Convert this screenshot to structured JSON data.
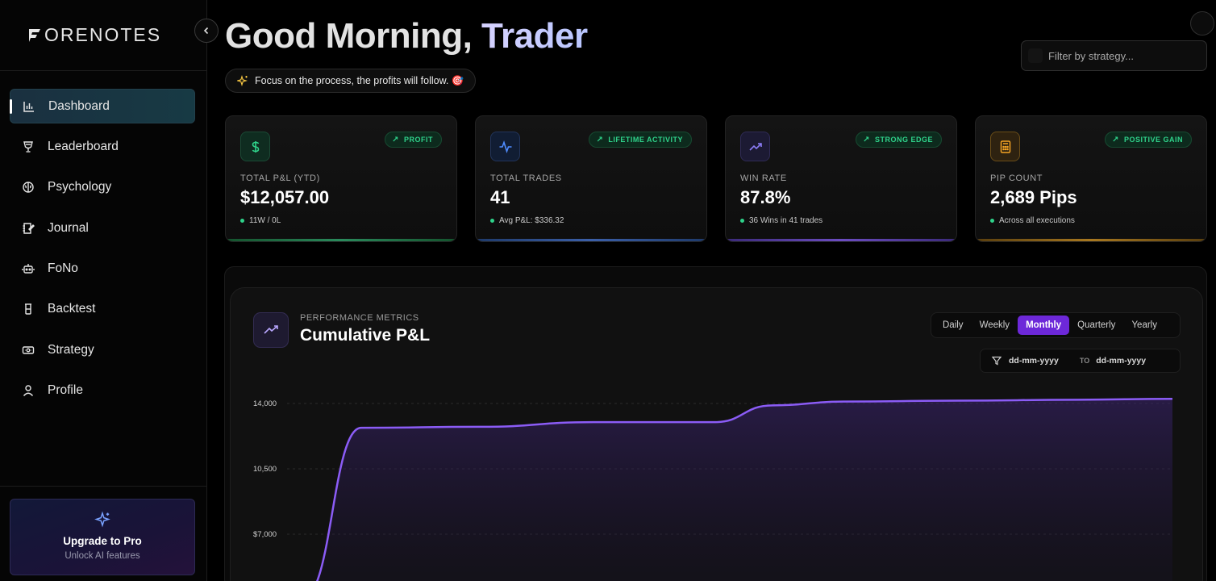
{
  "app": {
    "logo_text": "ORENOTES"
  },
  "sidebar": {
    "items": [
      {
        "label": "Dashboard",
        "icon": "bar-chart-icon",
        "active": true
      },
      {
        "label": "Leaderboard",
        "icon": "trophy-icon",
        "active": false
      },
      {
        "label": "Psychology",
        "icon": "brain-icon",
        "active": false
      },
      {
        "label": "Journal",
        "icon": "journal-icon",
        "active": false
      },
      {
        "label": "FoNo",
        "icon": "bot-icon",
        "active": false
      },
      {
        "label": "Backtest",
        "icon": "flask-icon",
        "active": false
      },
      {
        "label": "Strategy",
        "icon": "banknote-icon",
        "active": false
      },
      {
        "label": "Profile",
        "icon": "user-icon",
        "active": false
      }
    ],
    "upgrade": {
      "title": "Upgrade to Pro",
      "subtitle": "Unlock AI features"
    }
  },
  "header": {
    "greeting_prefix": "Good Morning,",
    "greeting_name": "Trader",
    "quote": "Focus on the process, the profits will follow. 🎯",
    "filter_placeholder": "Filter by strategy..."
  },
  "cards": [
    {
      "badge": "PROFIT",
      "label": "TOTAL P&L (YTD)",
      "value": "$12,057.00",
      "sub": "11W / 0L",
      "icon": "dollar-icon",
      "accent": "#2fd28a",
      "bar": "#1f7a52"
    },
    {
      "badge": "LIFETIME ACTIVITY",
      "label": "TOTAL TRADES",
      "value": "41",
      "sub": "Avg P&L: $336.32",
      "icon": "activity-icon",
      "accent": "#4f8cff",
      "bar": "#2d4f8f"
    },
    {
      "badge": "STRONG EDGE",
      "label": "WIN RATE",
      "value": "87.8%",
      "sub": "36 Wins in 41 trades",
      "icon": "trending-up-icon",
      "accent": "#8b7cf6",
      "bar": "#5a3fa0"
    },
    {
      "badge": "POSITIVE GAIN",
      "label": "PIP COUNT",
      "value": "2,689 Pips",
      "sub": "Across all executions",
      "icon": "calculator-icon",
      "accent": "#f5a524",
      "bar": "#8f6a1f"
    }
  ],
  "chart_section": {
    "kicker": "PERFORMANCE METRICS",
    "title": "Cumulative P&L",
    "tabs": [
      {
        "label": "Daily",
        "active": false
      },
      {
        "label": "Weekly",
        "active": false
      },
      {
        "label": "Monthly",
        "active": true
      },
      {
        "label": "Quarterly",
        "active": false
      },
      {
        "label": "Yearly",
        "active": false
      }
    ],
    "date_from": "dd-mm-yyyy",
    "date_to_label": "TO",
    "date_to": "dd-mm-yyyy"
  },
  "chart_data": {
    "type": "area",
    "title": "Cumulative P&L",
    "xlabel": "",
    "ylabel": "",
    "y_ticks": [
      "14,000",
      "10,500",
      "$7,000"
    ],
    "y_tick_values": [
      14000,
      10500,
      7000
    ],
    "ylim": [
      3500,
      14000
    ],
    "x": [
      0,
      1,
      2,
      3,
      4,
      5,
      6,
      7,
      8,
      9
    ],
    "values": [
      3600,
      12700,
      12750,
      13000,
      13000,
      13900,
      14100,
      14150,
      14200,
      14250
    ],
    "grid": true,
    "line_color": "#8b5cf6"
  },
  "colors": {
    "accent": "#6d28d9",
    "positive": "#2fd28a"
  }
}
